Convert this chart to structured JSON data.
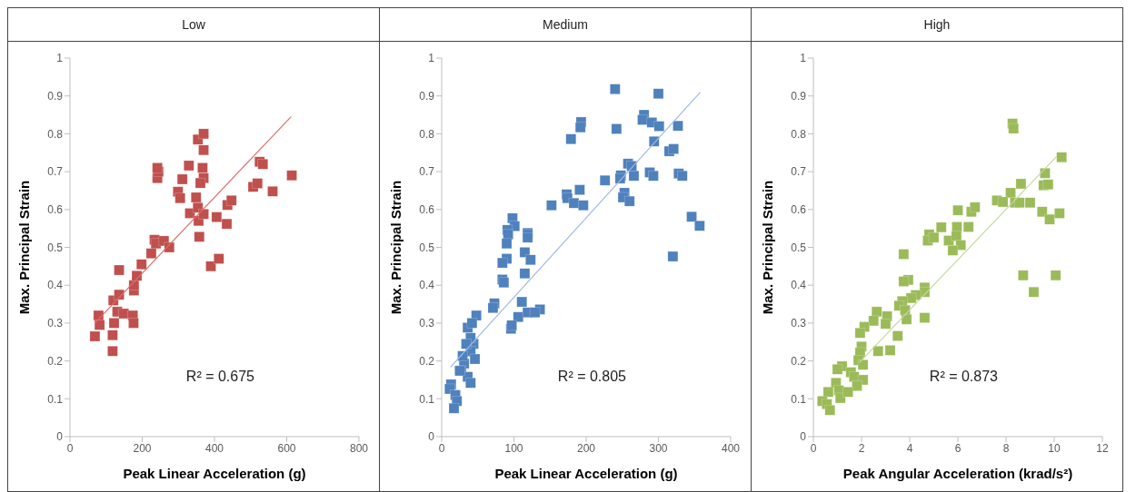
{
  "chart_data": [
    {
      "type": "scatter",
      "title": "Low",
      "xlabel": "Peak Linear Acceleration (g)",
      "ylabel": "Max. Principal Strain",
      "xlim": [
        0,
        800
      ],
      "xticks": [
        0,
        200,
        400,
        600,
        800
      ],
      "ylim": [
        0,
        1
      ],
      "yticks": [
        0,
        0.1,
        0.2,
        0.3,
        0.4,
        0.5,
        0.6,
        0.7,
        0.8,
        0.9,
        1
      ],
      "annotations": [
        "R² = 0.675"
      ],
      "series": [
        {
          "marker": "square",
          "color": "#c0504d",
          "x": [
            69,
            79,
            82,
            118,
            118,
            122,
            120,
            131,
            136,
            136,
            149,
            174,
            176,
            177,
            177,
            185,
            198,
            225,
            234,
            238,
            260,
            275,
            242,
            245,
            242,
            299,
            305,
            311,
            329,
            332,
            349,
            354,
            356,
            358,
            370,
            354,
            370,
            370,
            367,
            370,
            361,
            390,
            412,
            406,
            434,
            436,
            447,
            507,
            519,
            525,
            534,
            561,
            614
          ],
          "values": [
            0.265,
            0.32,
            0.295,
            0.226,
            0.268,
            0.3,
            0.36,
            0.33,
            0.375,
            0.44,
            0.325,
            0.32,
            0.3,
            0.386,
            0.4,
            0.425,
            0.455,
            0.484,
            0.52,
            0.51,
            0.517,
            0.5,
            0.683,
            0.7,
            0.71,
            0.647,
            0.63,
            0.68,
            0.716,
            0.59,
            0.632,
            0.605,
            0.57,
            0.528,
            0.588,
            0.785,
            0.8,
            0.757,
            0.71,
            0.683,
            0.67,
            0.45,
            0.47,
            0.58,
            0.562,
            0.612,
            0.624,
            0.66,
            0.669,
            0.726,
            0.72,
            0.648,
            0.69
          ]
        },
        {
          "type": "line",
          "color": "#e06c69",
          "x": [
            69,
            612
          ],
          "values": [
            0.3,
            0.845
          ]
        }
      ]
    },
    {
      "type": "scatter",
      "title": "Medium",
      "xlabel": "Peak Linear Acceleration (g)",
      "ylabel": "Max. Principal Strain",
      "xlim": [
        0,
        400
      ],
      "xticks": [
        0,
        100,
        200,
        300,
        400
      ],
      "ylim": [
        0,
        1
      ],
      "yticks": [
        0,
        0.1,
        0.2,
        0.3,
        0.4,
        0.5,
        0.6,
        0.7,
        0.8,
        0.9,
        1
      ],
      "annotations": [
        "R² = 0.805"
      ],
      "series": [
        {
          "marker": "square",
          "color": "#4f81bd",
          "x": [
            240,
            300,
            193,
            192,
            179,
            242,
            280,
            278,
            291,
            301,
            327,
            294,
            315,
            321,
            258,
            263,
            266,
            248,
            247,
            226,
            288,
            293,
            328,
            333,
            253,
            251,
            260,
            173,
            174,
            183,
            191,
            196,
            152,
            346,
            357,
            98,
            101,
            91,
            119,
            320,
            92,
            119,
            90,
            119,
            115,
            90,
            123,
            84,
            115,
            84,
            86,
            73,
            71,
            111,
            106,
            96,
            97,
            119,
            136,
            129,
            48,
            36,
            42,
            44,
            40,
            46,
            31,
            27,
            36,
            40,
            13,
            11,
            19,
            21,
            17,
            25,
            29,
            40,
            34
          ],
          "values": [
            0.918,
            0.906,
            0.831,
            0.817,
            0.786,
            0.813,
            0.85,
            0.837,
            0.83,
            0.82,
            0.821,
            0.78,
            0.754,
            0.76,
            0.721,
            0.715,
            0.689,
            0.69,
            0.682,
            0.677,
            0.698,
            0.689,
            0.695,
            0.689,
            0.644,
            0.632,
            0.622,
            0.64,
            0.63,
            0.617,
            0.652,
            0.611,
            0.611,
            0.581,
            0.557,
            0.577,
            0.556,
            0.546,
            0.538,
            0.476,
            0.534,
            0.534,
            0.51,
            0.526,
            0.487,
            0.47,
            0.467,
            0.459,
            0.431,
            0.415,
            0.407,
            0.352,
            0.34,
            0.356,
            0.316,
            0.285,
            0.294,
            0.328,
            0.336,
            0.328,
            0.32,
            0.288,
            0.3,
            0.245,
            0.225,
            0.205,
            0.193,
            0.174,
            0.158,
            0.142,
            0.138,
            0.126,
            0.11,
            0.094,
            0.075,
            0.174,
            0.213,
            0.261,
            0.245
          ]
        },
        {
          "type": "line",
          "color": "#9fbbe3",
          "x": [
            12,
            358
          ],
          "values": [
            0.183,
            0.91
          ]
        }
      ]
    },
    {
      "type": "scatter",
      "title": "High",
      "xlabel": "Peak Angular Acceleration (krad/s²)",
      "ylabel": "Max. Principal Strain",
      "xlim": [
        0,
        12
      ],
      "xticks": [
        0,
        2,
        4,
        6,
        8,
        10,
        12
      ],
      "ylim": [
        0,
        1
      ],
      "yticks": [
        0,
        0.1,
        0.2,
        0.3,
        0.4,
        0.5,
        0.6,
        0.7,
        0.8,
        0.9,
        1
      ],
      "annotations": [
        "R² = 0.873"
      ],
      "series": [
        {
          "marker": "square",
          "color": "#9bbb59",
          "x": [
            8.27,
            8.31,
            10.31,
            9.62,
            9.56,
            9.75,
            8.62,
            8.19,
            7.62,
            7.87,
            8.37,
            8.56,
            9.0,
            9.5,
            9.81,
            10.22,
            6.0,
            6.56,
            6.71,
            5.96,
            6.44,
            5.31,
            4.81,
            4.75,
            5.0,
            5.62,
            5.94,
            6.12,
            5.79,
            3.75,
            8.71,
            10.06,
            9.15,
            3.94,
            3.75,
            4.62,
            4.62,
            4.25,
            4.06,
            3.69,
            3.56,
            3.81,
            3.87,
            4.62,
            3.06,
            2.63,
            2.5,
            2.12,
            1.94,
            3.0,
            3.5,
            2.69,
            3.19,
            2.0,
            1.94,
            1.87,
            2.06,
            1.19,
            1.0,
            1.56,
            1.69,
            2.06,
            1.81,
            0.94,
            1.06,
            0.62,
            0.37,
            0.56,
            0.69,
            1.12,
            1.44
          ],
          "values": [
            0.827,
            0.814,
            0.738,
            0.696,
            0.664,
            0.666,
            0.668,
            0.644,
            0.624,
            0.62,
            0.618,
            0.618,
            0.618,
            0.594,
            0.574,
            0.59,
            0.598,
            0.594,
            0.606,
            0.554,
            0.554,
            0.553,
            0.534,
            0.518,
            0.526,
            0.518,
            0.53,
            0.506,
            0.492,
            0.482,
            0.426,
            0.426,
            0.382,
            0.414,
            0.41,
            0.394,
            0.382,
            0.374,
            0.366,
            0.358,
            0.346,
            0.334,
            0.31,
            0.314,
            0.318,
            0.33,
            0.306,
            0.29,
            0.274,
            0.298,
            0.266,
            0.226,
            0.228,
            0.238,
            0.222,
            0.202,
            0.19,
            0.186,
            0.178,
            0.17,
            0.158,
            0.15,
            0.134,
            0.142,
            0.122,
            0.118,
            0.094,
            0.086,
            0.07,
            0.102,
            0.118
          ]
        },
        {
          "type": "line",
          "color": "#c6d9a0",
          "x": [
            1.9,
            10.1
          ],
          "values": [
            0.195,
            0.74
          ]
        }
      ]
    }
  ]
}
